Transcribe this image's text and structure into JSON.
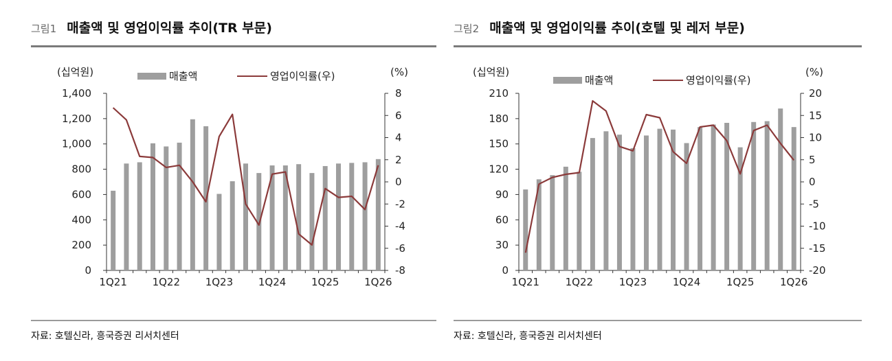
{
  "colors": {
    "bar": "#9e9e9e",
    "line": "#8b3a3a",
    "axis": "#333333"
  },
  "chart_data": [
    {
      "type": "bar",
      "figure_label": "그림1",
      "title": "매출액 및 영업이익률 추이(TR 부문)",
      "source": "자료: 호텔신라, 흥국증권 리서치센터",
      "left_unit": "(십억원)",
      "right_unit": "(%)",
      "ylim": [
        0,
        1400
      ],
      "ylim_right": [
        -8,
        8
      ],
      "yticks": [
        "0",
        "200",
        "400",
        "600",
        "800",
        "1,000",
        "1,200",
        "1,400"
      ],
      "yticks_right": [
        "-8",
        "-6",
        "-4",
        "-2",
        "0",
        "2",
        "4",
        "6",
        "8"
      ],
      "xtick_labels": [
        "1Q21",
        "1Q22",
        "1Q23",
        "1Q24",
        "1Q25",
        "1Q26"
      ],
      "categories": [
        "1Q21",
        "2Q21",
        "3Q21",
        "4Q21",
        "1Q22",
        "2Q22",
        "3Q22",
        "4Q22",
        "1Q23",
        "2Q23",
        "3Q23",
        "4Q23",
        "1Q24",
        "2Q24",
        "3Q24",
        "4Q24",
        "1Q25",
        "2Q25",
        "3Q25",
        "4Q25",
        "1Q26"
      ],
      "series": [
        {
          "name": "매출액",
          "kind": "bar",
          "axis": "left",
          "values": [
            630,
            845,
            855,
            1005,
            980,
            1010,
            1195,
            1140,
            605,
            705,
            845,
            770,
            830,
            830,
            840,
            770,
            825,
            845,
            850,
            855,
            880
          ]
        },
        {
          "name": "영업이익률(우)",
          "kind": "line",
          "axis": "right",
          "values": [
            6.7,
            5.6,
            2.3,
            2.2,
            1.3,
            1.5,
            0.0,
            -1.8,
            4.1,
            6.1,
            -2.0,
            -3.9,
            0.7,
            0.9,
            -4.7,
            -5.7,
            -0.6,
            -1.4,
            -1.3,
            -2.5,
            1.5
          ]
        }
      ]
    },
    {
      "type": "bar",
      "figure_label": "그림2",
      "title": "매출액 및 영업이익률 추이(호텔 및 레저 부문)",
      "source": "자료: 호텔신라, 흥국증권 리서치센터",
      "left_unit": "(십억원)",
      "right_unit": "(%)",
      "ylim": [
        0,
        210
      ],
      "ylim_right": [
        -20,
        20
      ],
      "yticks": [
        "0",
        "30",
        "60",
        "90",
        "120",
        "150",
        "180",
        "210"
      ],
      "yticks_right": [
        "-20",
        "-15",
        "-10",
        "-5",
        "0",
        "5",
        "10",
        "15",
        "20"
      ],
      "xtick_labels": [
        "1Q21",
        "1Q22",
        "1Q23",
        "1Q24",
        "1Q25",
        "1Q26"
      ],
      "categories": [
        "1Q21",
        "2Q21",
        "3Q21",
        "4Q21",
        "1Q22",
        "2Q22",
        "3Q22",
        "4Q22",
        "1Q23",
        "2Q23",
        "3Q23",
        "4Q23",
        "1Q24",
        "2Q24",
        "3Q24",
        "4Q24",
        "1Q25",
        "2Q25",
        "3Q25",
        "4Q25",
        "1Q26"
      ],
      "series": [
        {
          "name": "매출액",
          "kind": "bar",
          "axis": "left",
          "values": [
            96,
            108,
            113,
            123,
            117,
            157,
            165,
            161,
            145,
            160,
            168,
            167,
            151,
            170,
            173,
            175,
            146,
            176,
            177,
            192,
            170
          ]
        },
        {
          "name": "영업이익률(우)",
          "kind": "line",
          "axis": "right",
          "values": [
            -16.0,
            -0.5,
            1.0,
            1.7,
            2.1,
            18.3,
            16.0,
            8.0,
            7.0,
            15.2,
            14.5,
            6.8,
            4.2,
            12.4,
            12.8,
            9.3,
            1.8,
            11.6,
            12.8,
            8.7,
            4.9
          ]
        }
      ]
    }
  ]
}
